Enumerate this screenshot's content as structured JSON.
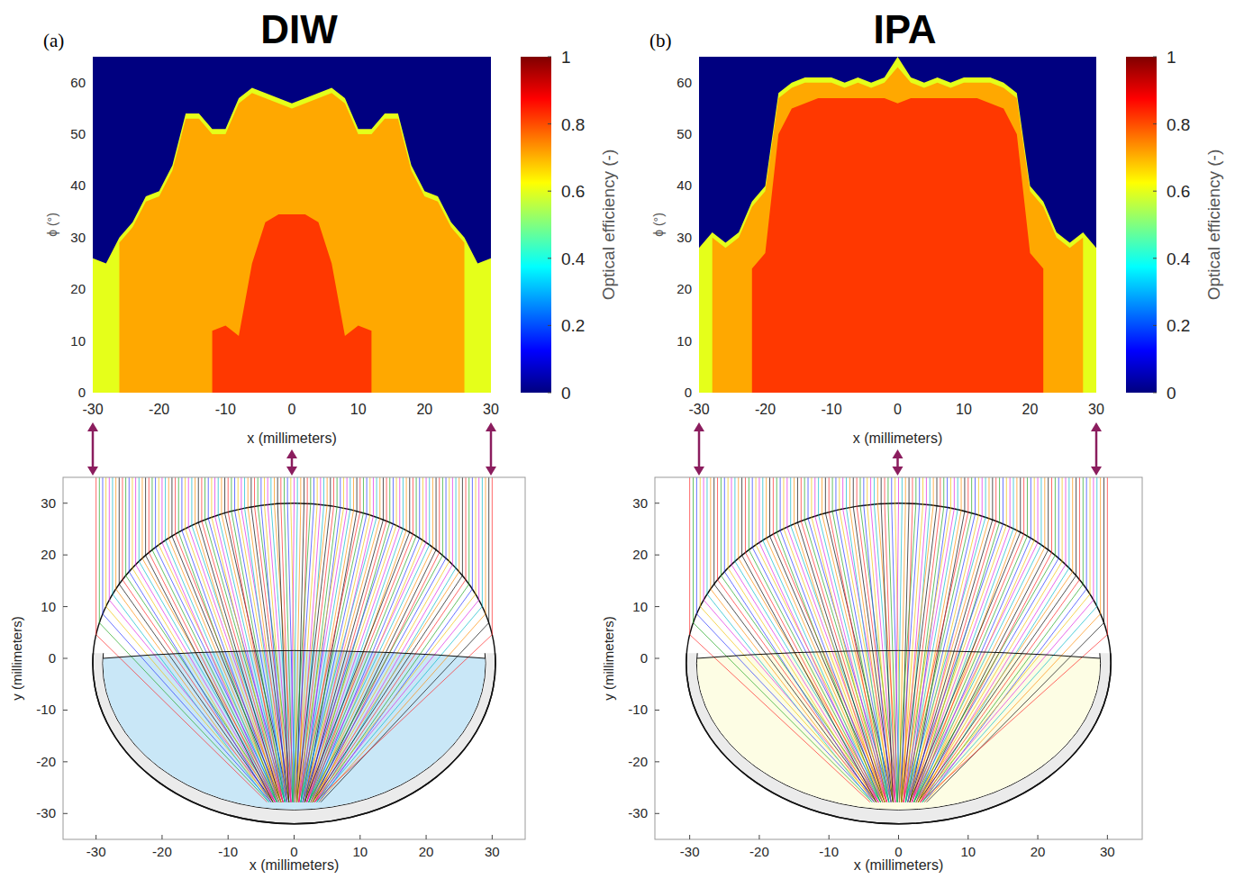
{
  "chart_data": [
    {
      "type": "heatmap",
      "panel": "(a)",
      "title": "DIW",
      "x_label": "x (millimeters)",
      "y_label": "ϕ (°)",
      "xlim": [
        -30,
        30
      ],
      "ylim": [
        0,
        65
      ],
      "xticks": [
        -30,
        -20,
        -10,
        0,
        10,
        20,
        30
      ],
      "yticks": [
        0,
        10,
        20,
        30,
        40,
        50,
        60
      ],
      "background": 0,
      "x": [
        -30,
        -28,
        -26,
        -24,
        -22,
        -20,
        -18,
        -16,
        -14,
        -12,
        -10,
        -8,
        -6,
        -4,
        -2,
        0,
        2,
        4,
        6,
        8,
        10,
        12,
        14,
        16,
        18,
        20,
        22,
        24,
        26,
        28,
        30
      ],
      "regions": [
        {
          "value": 0.6,
          "phi_max": [
            26,
            25,
            30,
            33,
            38,
            39,
            44,
            54,
            54,
            51,
            51,
            57,
            59,
            58,
            57,
            56,
            57,
            58,
            59,
            57,
            51,
            51,
            54,
            54,
            44,
            39,
            38,
            33,
            30,
            25,
            26
          ]
        },
        {
          "value": 0.71,
          "phi_max": [
            null,
            null,
            29,
            32,
            37,
            38,
            43,
            53,
            53,
            50,
            50,
            56,
            58,
            57,
            56,
            55,
            56,
            57,
            58,
            56,
            50,
            50,
            53,
            53,
            43,
            38,
            37,
            32,
            29,
            null,
            null
          ]
        },
        {
          "value": 0.82,
          "phi_max": [
            null,
            null,
            null,
            null,
            null,
            null,
            null,
            null,
            null,
            12,
            13,
            11,
            25,
            33,
            34.5,
            34.5,
            34.5,
            33,
            25,
            11,
            13,
            12,
            null,
            null,
            null,
            null,
            null,
            null,
            null,
            null,
            null
          ]
        }
      ],
      "colorbar": {
        "label": "Optical efficiency (-)",
        "range": [
          0,
          1
        ],
        "ticks": [
          0,
          0.2,
          0.4,
          0.6,
          0.8,
          1
        ]
      }
    },
    {
      "type": "raytrace",
      "x_label": "x (millimeters)",
      "y_label": "y (millimeters)",
      "xlim": [
        -35,
        35
      ],
      "ylim": [
        -35,
        35
      ],
      "xticks": [
        -30,
        -20,
        -10,
        0,
        10,
        20,
        30
      ],
      "yticks": [
        -30,
        -20,
        -10,
        0,
        10,
        20,
        30
      ],
      "color": "#c9e7f7"
    },
    {
      "type": "heatmap",
      "panel": "(b)",
      "title": "IPA",
      "x_label": "x (millimeters)",
      "y_label": "ϕ (°)",
      "xlim": [
        -30,
        30
      ],
      "ylim": [
        0,
        65
      ],
      "xticks": [
        -30,
        -20,
        -10,
        0,
        10,
        20,
        30
      ],
      "yticks": [
        0,
        10,
        20,
        30,
        40,
        50,
        60
      ],
      "background": 0,
      "x": [
        -30,
        -28,
        -26,
        -24,
        -22,
        -20,
        -18,
        -16,
        -14,
        -12,
        -10,
        -8,
        -6,
        -4,
        -2,
        0,
        2,
        4,
        6,
        8,
        10,
        12,
        14,
        16,
        18,
        20,
        22,
        24,
        26,
        28,
        30
      ],
      "regions": [
        {
          "value": 0.6,
          "phi_max": [
            28,
            31,
            29,
            31,
            37,
            40,
            58,
            60,
            61,
            61,
            61,
            60,
            61,
            60,
            61,
            65,
            61,
            60,
            61,
            60,
            61,
            61,
            61,
            60,
            58,
            40,
            37,
            31,
            29,
            31,
            28
          ]
        },
        {
          "value": 0.71,
          "phi_max": [
            null,
            30,
            28,
            30,
            36,
            39,
            57,
            59,
            60,
            60,
            60,
            59,
            60,
            59,
            60,
            63,
            60,
            59,
            60,
            59,
            60,
            60,
            60,
            59,
            57,
            39,
            36,
            30,
            28,
            30,
            null
          ]
        },
        {
          "value": 0.82,
          "phi_max": [
            null,
            null,
            null,
            null,
            24,
            27,
            50,
            55,
            56,
            57,
            57,
            57,
            57,
            57,
            57,
            56,
            57,
            57,
            57,
            57,
            57,
            57,
            56,
            55,
            50,
            27,
            24,
            null,
            null,
            null,
            null
          ]
        }
      ],
      "colorbar": {
        "label": "Optical efficiency (-)",
        "range": [
          0,
          1
        ],
        "ticks": [
          0,
          0.2,
          0.4,
          0.6,
          0.8,
          1
        ]
      }
    },
    {
      "type": "raytrace",
      "x_label": "x (millimeters)",
      "y_label": "y (millimeters)",
      "xlim": [
        -35,
        35
      ],
      "ylim": [
        -35,
        35
      ],
      "xticks": [
        -30,
        -20,
        -10,
        0,
        10,
        20,
        30
      ],
      "yticks": [
        -30,
        -20,
        -10,
        0,
        10,
        20,
        30
      ],
      "color": "#fdfde4"
    }
  ]
}
